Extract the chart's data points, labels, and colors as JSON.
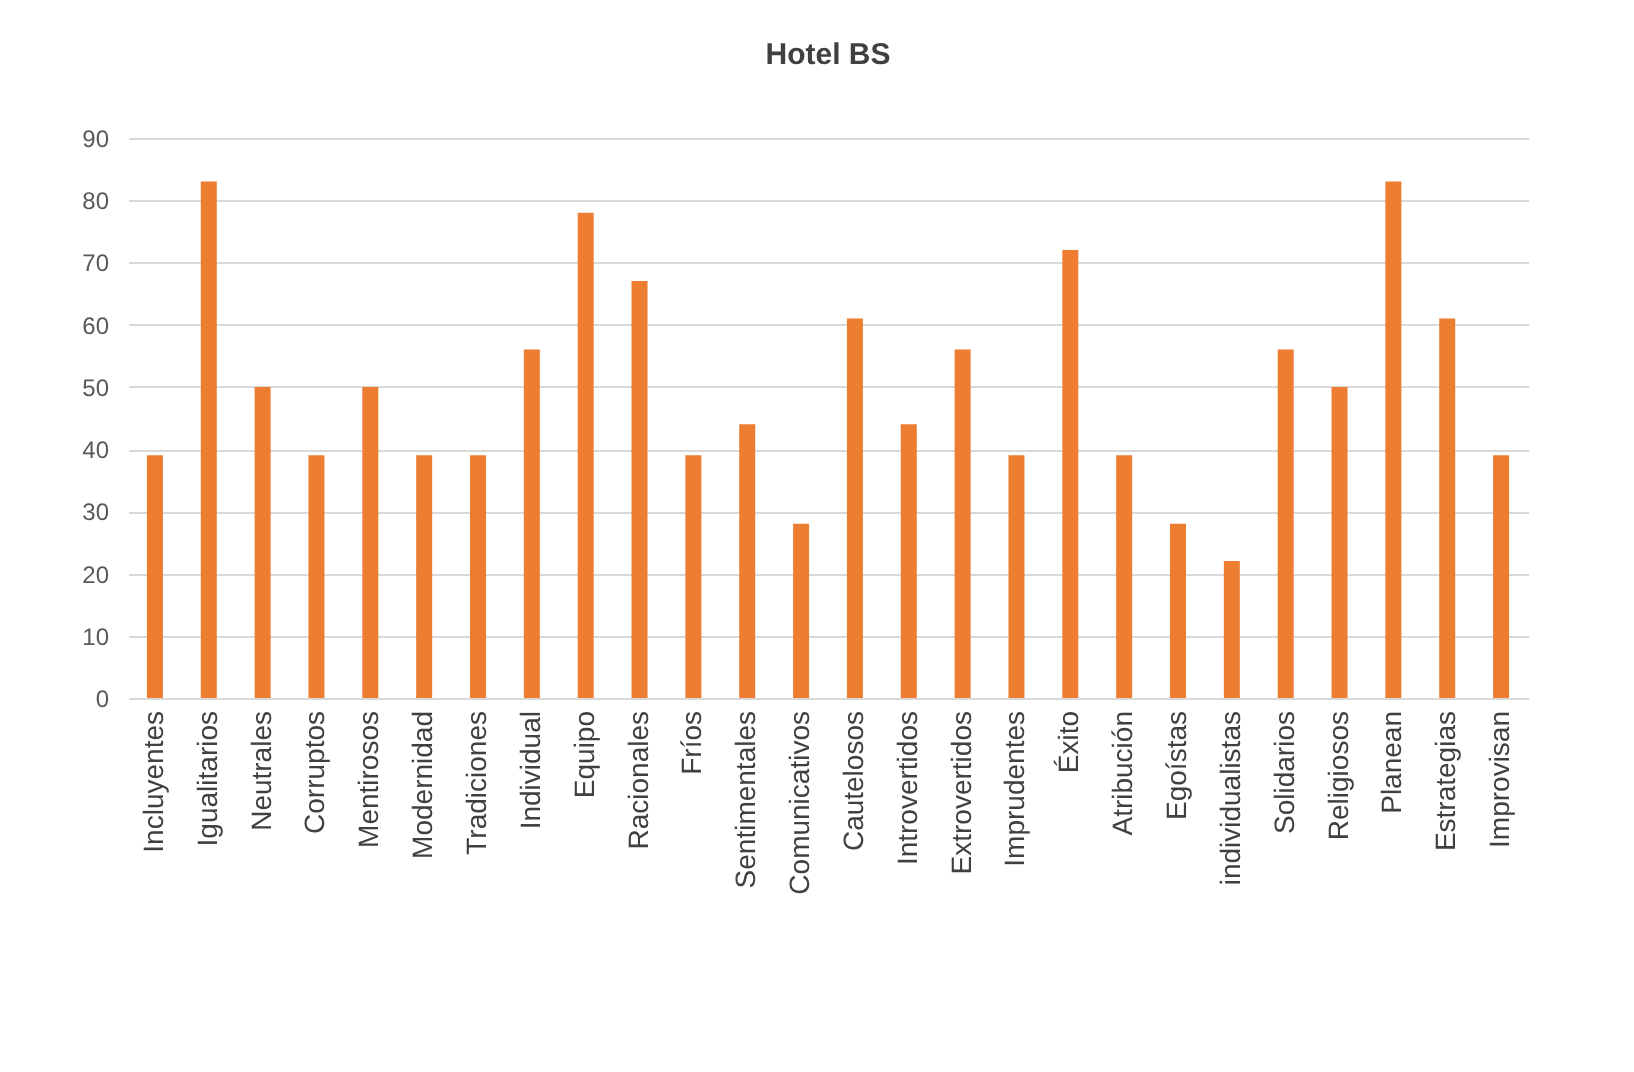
{
  "chart_data": {
    "type": "bar",
    "title": "Hotel BS",
    "categories": [
      "Incluyentes",
      "Igualitarios",
      "Neutrales",
      "Corruptos",
      "Mentirosos",
      "Modernidad",
      "Tradiciones",
      "Individual",
      "Equipo",
      "Racionales",
      "Fríos",
      "Sentimentales",
      "Comunicativos",
      "Cautelosos",
      "Introvertidos",
      "Extrovertidos",
      "Imprudentes",
      "Éxito",
      "Atribución",
      "Egoístas",
      "individualistas",
      "Solidarios",
      "Religiosos",
      "Planean",
      "Estrategias",
      "Improvisan"
    ],
    "values": [
      39,
      83,
      50,
      39,
      50,
      39,
      39,
      56,
      78,
      67,
      39,
      44,
      28,
      61,
      44,
      56,
      39,
      72,
      39,
      28,
      22,
      56,
      50,
      83,
      61,
      39
    ],
    "color": "#ed7d31",
    "ylim": [
      0,
      90
    ],
    "yticks": [
      0,
      10,
      20,
      30,
      40,
      50,
      60,
      70,
      80,
      90
    ],
    "grid": "y"
  }
}
